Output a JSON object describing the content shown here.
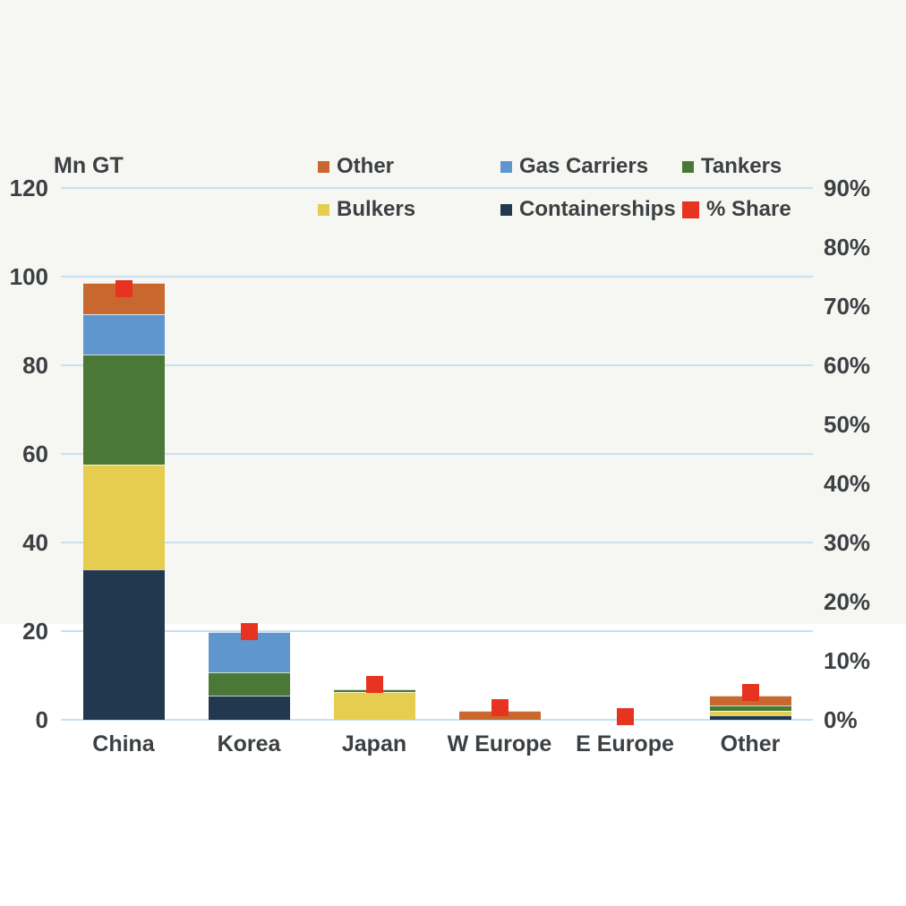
{
  "chart_data": {
    "type": "bar",
    "subtype": "stacked-columns-with-percent-markers",
    "title": "",
    "categories": [
      "China",
      "Korea",
      "Japan",
      "W Europe",
      "E Europe",
      "Other"
    ],
    "series": [
      {
        "name": "Containerships",
        "color": "#22384f",
        "values": [
          34,
          5.5,
          0,
          0,
          0,
          1
        ]
      },
      {
        "name": "Bulkers",
        "color": "#e7cd4f",
        "values": [
          23.5,
          0,
          6.2,
          0,
          0,
          1
        ]
      },
      {
        "name": "Tankers",
        "color": "#4a7837",
        "values": [
          25,
          5.3,
          0.6,
          0,
          0,
          1.2
        ]
      },
      {
        "name": "Gas Carriers",
        "color": "#6096ce",
        "values": [
          9,
          9,
          0,
          0,
          0,
          0
        ]
      },
      {
        "name": "Other",
        "color": "#c8682f",
        "values": [
          7,
          0,
          0,
          2,
          0,
          2.2
        ]
      }
    ],
    "stack_totals": [
      98.5,
      19.8,
      6.8,
      2,
      0,
      5.4
    ],
    "marker_series": {
      "name": "% Share",
      "color": "#e63420",
      "values_percent": [
        73,
        15,
        6,
        2.1,
        0.6,
        4.6
      ]
    },
    "left_axis": {
      "label": "Mn GT",
      "min": 0,
      "max": 120,
      "tick_step": 20,
      "tick_labels": [
        "120",
        "100",
        "80",
        "60",
        "40",
        "20",
        "0"
      ]
    },
    "right_axis": {
      "min": 0,
      "max": 90,
      "tick_step": 10,
      "tick_labels": [
        "90%",
        "80%",
        "70%",
        "60%",
        "50%",
        "40%",
        "30%",
        "20%",
        "10%",
        "0%"
      ]
    },
    "legend": {
      "rows": [
        [
          "Other",
          "Gas Carriers",
          "Tankers"
        ],
        [
          "Bulkers",
          "Containerships",
          "% Share"
        ]
      ]
    },
    "grid": "horizontal",
    "colors": {
      "gridline": "#c9e0ee",
      "text": "#3c4043",
      "background_band": "#f6f6f3",
      "page_background": "#ffffff"
    }
  }
}
